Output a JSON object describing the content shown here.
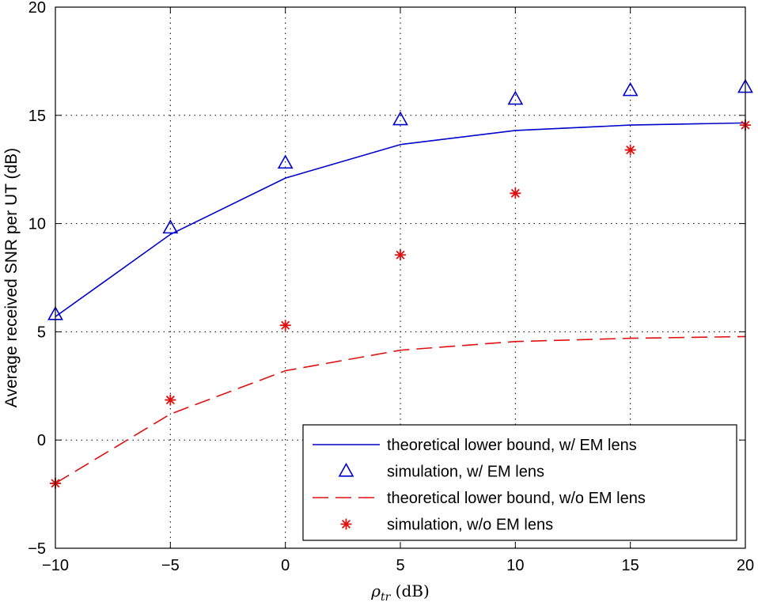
{
  "chart_data": {
    "type": "line",
    "title": "",
    "xlabel": {
      "symbol": "ρ",
      "subscript": "tr",
      "unit": " (dB)"
    },
    "ylabel": "Average received SNR per UT (dB)",
    "xlim": [
      -10,
      20
    ],
    "ylim": [
      -5,
      20
    ],
    "xticks": [
      -10,
      -5,
      0,
      5,
      10,
      15,
      20
    ],
    "yticks": [
      -5,
      0,
      5,
      10,
      15,
      20
    ],
    "grid": true,
    "legend_position": "bottom-right",
    "series": [
      {
        "name": "theoretical lower bound, w/ EM lens",
        "style": "solid-line",
        "color": "#0000cc",
        "x": [
          -10,
          -5,
          0,
          5,
          10,
          15,
          20
        ],
        "y": [
          5.7,
          9.5,
          12.1,
          13.65,
          14.3,
          14.55,
          14.65
        ]
      },
      {
        "name": "simulation, w/ EM lens",
        "style": "triangle-marker",
        "color": "#0000cc",
        "x": [
          -10,
          -5,
          0,
          5,
          10,
          15,
          20
        ],
        "y": [
          5.8,
          9.8,
          12.8,
          14.8,
          15.75,
          16.15,
          16.3
        ]
      },
      {
        "name": "theoretical lower bound, w/o EM lens",
        "style": "dashed-line",
        "color": "#e01010",
        "x": [
          -10,
          -5,
          0,
          5,
          10,
          15,
          20
        ],
        "y": [
          -2.0,
          1.2,
          3.2,
          4.15,
          4.55,
          4.7,
          4.78
        ]
      },
      {
        "name": "simulation, w/o EM lens",
        "style": "star-marker",
        "color": "#e01010",
        "x": [
          -10,
          -5,
          0,
          5,
          10,
          15,
          20
        ],
        "y": [
          -2.0,
          1.85,
          5.3,
          8.55,
          11.4,
          13.4,
          14.55
        ]
      }
    ]
  }
}
